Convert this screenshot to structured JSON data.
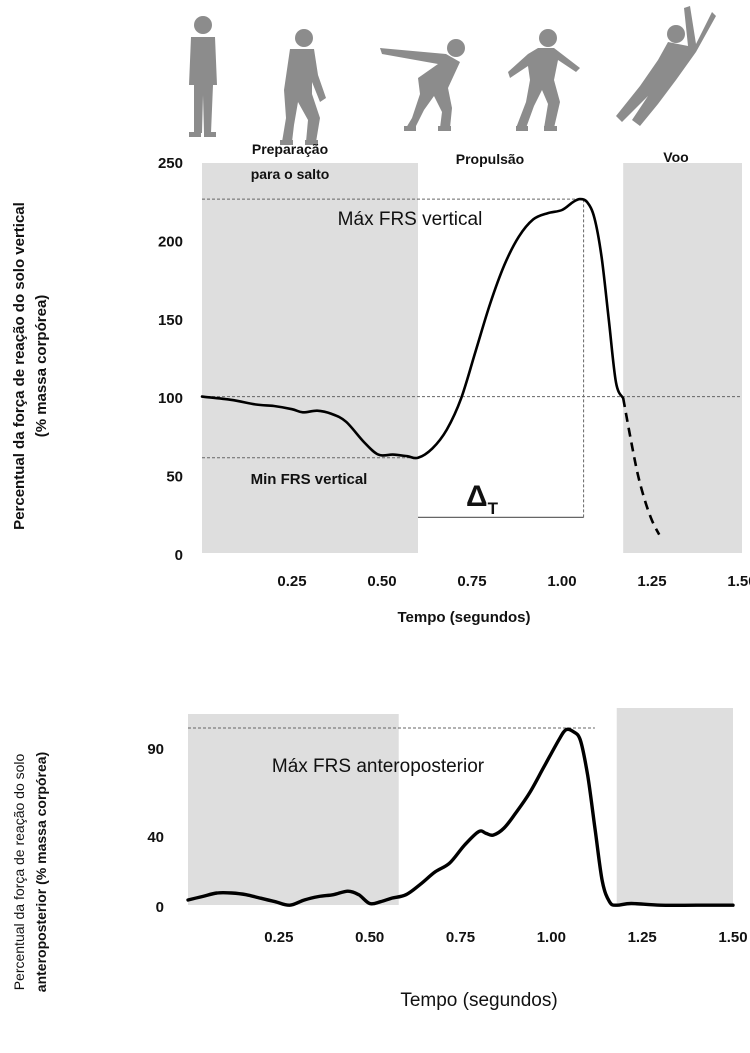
{
  "figure_icons": [
    "standing-person-icon",
    "crouching-person-icon",
    "deep-crouch-person-icon",
    "propulsion-person-icon",
    "flight-person-icon"
  ],
  "colors": {
    "shade": "#dedede",
    "line": "#000000",
    "dashed": "#666666",
    "figure": "#8c8c8c",
    "axis": "#222222"
  },
  "chart_data": [
    {
      "type": "line",
      "title": "",
      "xlabel": "Tempo (segundos)",
      "ylabel_line1": "Percentual da força de reação do solo vertical",
      "ylabel_line2": "(% massa corpórea)",
      "xlim": [
        0,
        1.5
      ],
      "ylim": [
        0,
        250
      ],
      "xtick_values": [
        0.25,
        0.5,
        0.75,
        1.0,
        1.25,
        1.5
      ],
      "xtick_labels": [
        "0.25",
        "0.50",
        "0.75",
        "1.00",
        "1.25",
        "1.50"
      ],
      "ytick_values": [
        0,
        50,
        100,
        150,
        200,
        250
      ],
      "ytick_labels": [
        "0",
        "50",
        "100",
        "150",
        "200",
        "250"
      ],
      "phases": [
        {
          "label_line1": "Preparação",
          "label_line2": "para o salto",
          "shaded": true,
          "x_range": [
            0,
            0.6
          ]
        },
        {
          "label_line1": "Propulsão",
          "label_line2": "",
          "shaded": false,
          "x_range": [
            0.6,
            1.17
          ]
        },
        {
          "label_line1": "Voo",
          "label_line2": "",
          "shaded": true,
          "x_range": [
            1.17,
            1.5
          ]
        }
      ],
      "series": [
        {
          "name": "FRS vertical",
          "x": [
            0,
            0.08,
            0.15,
            0.2,
            0.25,
            0.28,
            0.32,
            0.36,
            0.4,
            0.45,
            0.49,
            0.53,
            0.57,
            0.6,
            0.64,
            0.68,
            0.72,
            0.76,
            0.8,
            0.84,
            0.88,
            0.92,
            0.96,
            1.0,
            1.03,
            1.05,
            1.07,
            1.09,
            1.11,
            1.13,
            1.15,
            1.17
          ],
          "y": [
            101,
            99,
            96,
            95,
            93,
            91,
            92,
            90,
            85,
            72,
            64,
            64,
            63,
            62,
            68,
            80,
            100,
            130,
            160,
            185,
            203,
            214,
            218,
            220,
            225,
            227,
            225,
            215,
            190,
            150,
            110,
            100
          ]
        },
        {
          "name": "extrapolação (tracejado)",
          "dashed": true,
          "x": [
            1.17,
            1.19,
            1.21,
            1.23,
            1.25,
            1.27
          ],
          "y": [
            100,
            75,
            52,
            35,
            22,
            13
          ]
        }
      ],
      "reference_lines": [
        {
          "y": 227,
          "x_range": [
            0,
            1.06
          ]
        },
        {
          "y": 101,
          "x_range": [
            0,
            1.5
          ]
        },
        {
          "y": 62,
          "x_range": [
            0,
            0.6
          ]
        }
      ],
      "guide_lines": [
        {
          "x": 1.06,
          "y_range": [
            24,
            227
          ]
        }
      ],
      "annotations": {
        "max_label": "Máx FRS vertical",
        "min_label": "Min FRS vertical",
        "delta_main": "Δ",
        "delta_sub": "T",
        "delta_x_range": [
          0.6,
          1.06
        ],
        "delta_y": 24
      }
    },
    {
      "type": "line",
      "title": "",
      "xlabel": "Tempo (segundos)",
      "ylabel_line1": "Percentual da força de reação do solo",
      "ylabel_line2": "anteroposterior  (% massa corpórea)",
      "xlim": [
        0,
        1.5
      ],
      "ylim": [
        0,
        110
      ],
      "xtick_values": [
        0.25,
        0.5,
        0.75,
        1.0,
        1.25,
        1.5
      ],
      "xtick_labels": [
        "0.25",
        "0.50",
        "0.75",
        "1.00",
        "1.25",
        "1.50"
      ],
      "ytick_values": [
        0,
        40,
        90
      ],
      "ytick_labels": [
        "0",
        "40",
        "90"
      ],
      "phases": [
        {
          "label_line1": "",
          "label_line2": "",
          "shaded": true,
          "x_range": [
            0,
            0.58
          ]
        },
        {
          "label_line1": "",
          "label_line2": "",
          "shaded": true,
          "x_range": [
            1.18,
            1.5
          ]
        }
      ],
      "series": [
        {
          "name": "FRS anteroposterior",
          "x": [
            0,
            0.04,
            0.08,
            0.12,
            0.16,
            0.2,
            0.24,
            0.28,
            0.32,
            0.36,
            0.4,
            0.44,
            0.47,
            0.5,
            0.53,
            0.56,
            0.6,
            0.64,
            0.68,
            0.72,
            0.76,
            0.8,
            0.82,
            0.84,
            0.87,
            0.9,
            0.94,
            0.98,
            1.02,
            1.04,
            1.06,
            1.08,
            1.1,
            1.12,
            1.14,
            1.16,
            1.18,
            1.22,
            1.3,
            1.4,
            1.5
          ],
          "y": [
            4,
            6,
            8,
            8,
            7,
            5,
            3,
            1,
            4,
            6,
            7,
            9,
            7,
            2,
            3,
            5,
            7,
            13,
            20,
            25,
            35,
            43,
            42,
            41,
            45,
            53,
            65,
            80,
            95,
            101,
            100,
            95,
            75,
            45,
            15,
            3,
            1,
            2,
            1,
            1,
            1
          ]
        }
      ],
      "reference_lines": [
        {
          "y": 102,
          "x_range": [
            0,
            1.12
          ]
        }
      ],
      "guide_lines": [],
      "annotations": {
        "max_label": "Máx FRS anteroposterior"
      }
    }
  ]
}
